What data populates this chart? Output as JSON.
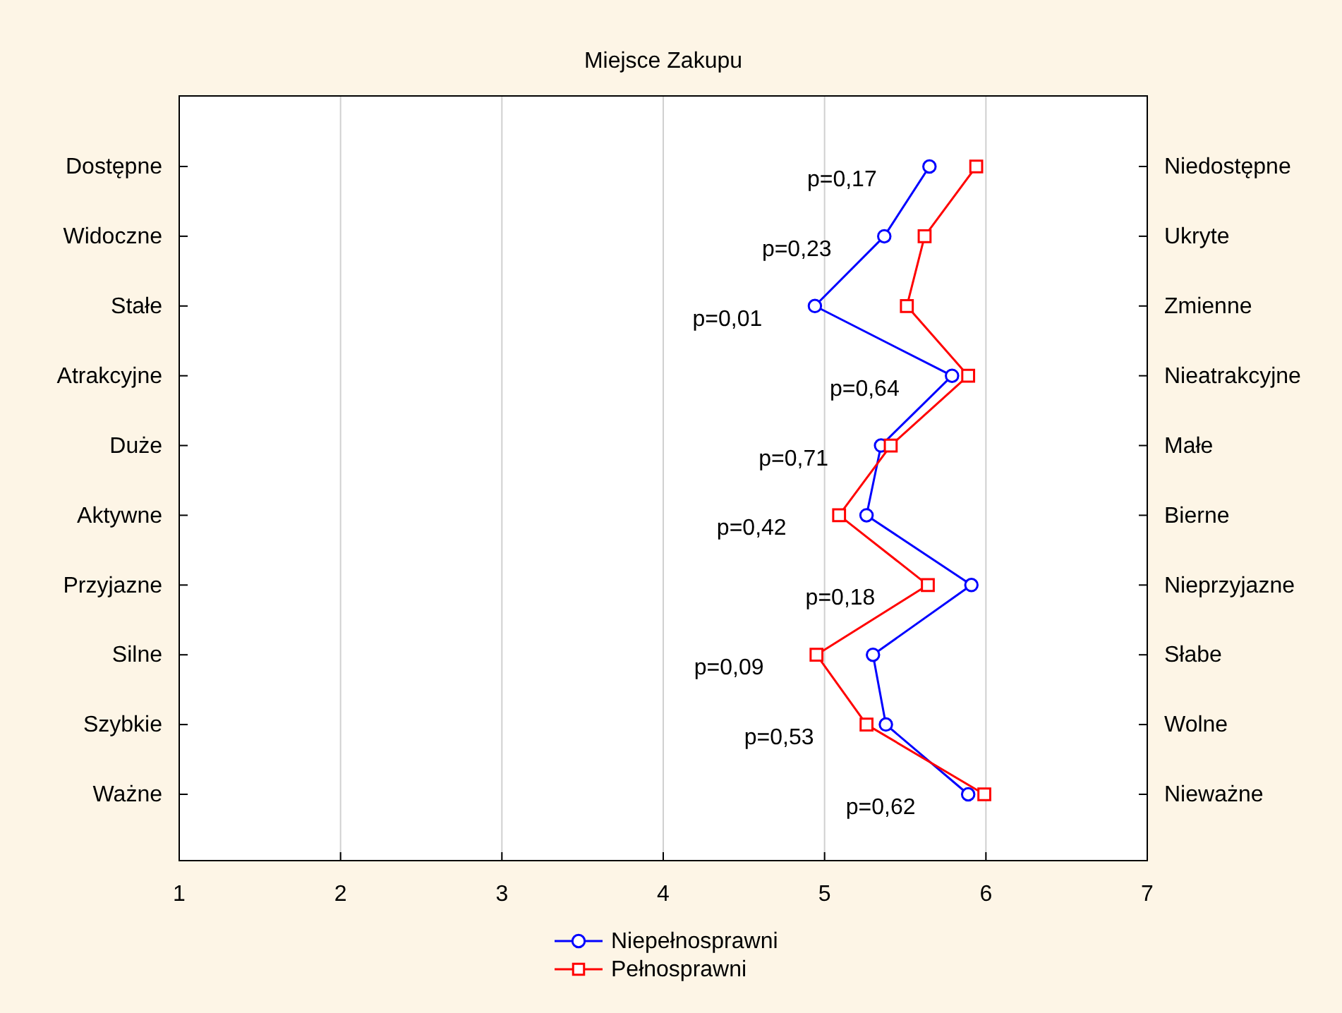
{
  "chart_data": {
    "type": "line",
    "orientation": "horizontal",
    "title": "Miejsce Zakupu",
    "categories": [
      "Dostępne",
      "Widoczne",
      "Stałe",
      "Atrakcyjne",
      "Duże",
      "Aktywne",
      "Przyjazne",
      "Silne",
      "Szybkie",
      "Ważne"
    ],
    "y2_categories": [
      "Niedostępne",
      "Ukryte",
      "Zmienne",
      "Nieatrakcyjne",
      "Małe",
      "Bierne",
      "Nieprzyjazne",
      "Słabe",
      "Wolne",
      "Nieważne"
    ],
    "series": [
      {
        "name": "Niepełnosprawni",
        "color": "#0000ff",
        "marker": "circle",
        "values": [
          5.65,
          5.37,
          4.94,
          5.79,
          5.35,
          5.26,
          5.91,
          5.3,
          5.38,
          5.89
        ]
      },
      {
        "name": "Pełnosprawni",
        "color": "#ff0000",
        "marker": "square",
        "values": [
          5.94,
          5.62,
          5.51,
          5.89,
          5.41,
          5.09,
          5.64,
          4.95,
          5.26,
          5.99
        ]
      }
    ],
    "xlim": [
      1,
      7
    ],
    "xticks": [
      1,
      2,
      3,
      4,
      5,
      6,
      7
    ],
    "grid": "x",
    "legend": "bottom",
    "annotations": [
      "p=0,17",
      "p=0,23",
      "p=0,01",
      "p=0,64",
      "p=0,71",
      "p=0,42",
      "p=0,18",
      "p=0,09",
      "p=0,53",
      "p=0,62"
    ]
  }
}
